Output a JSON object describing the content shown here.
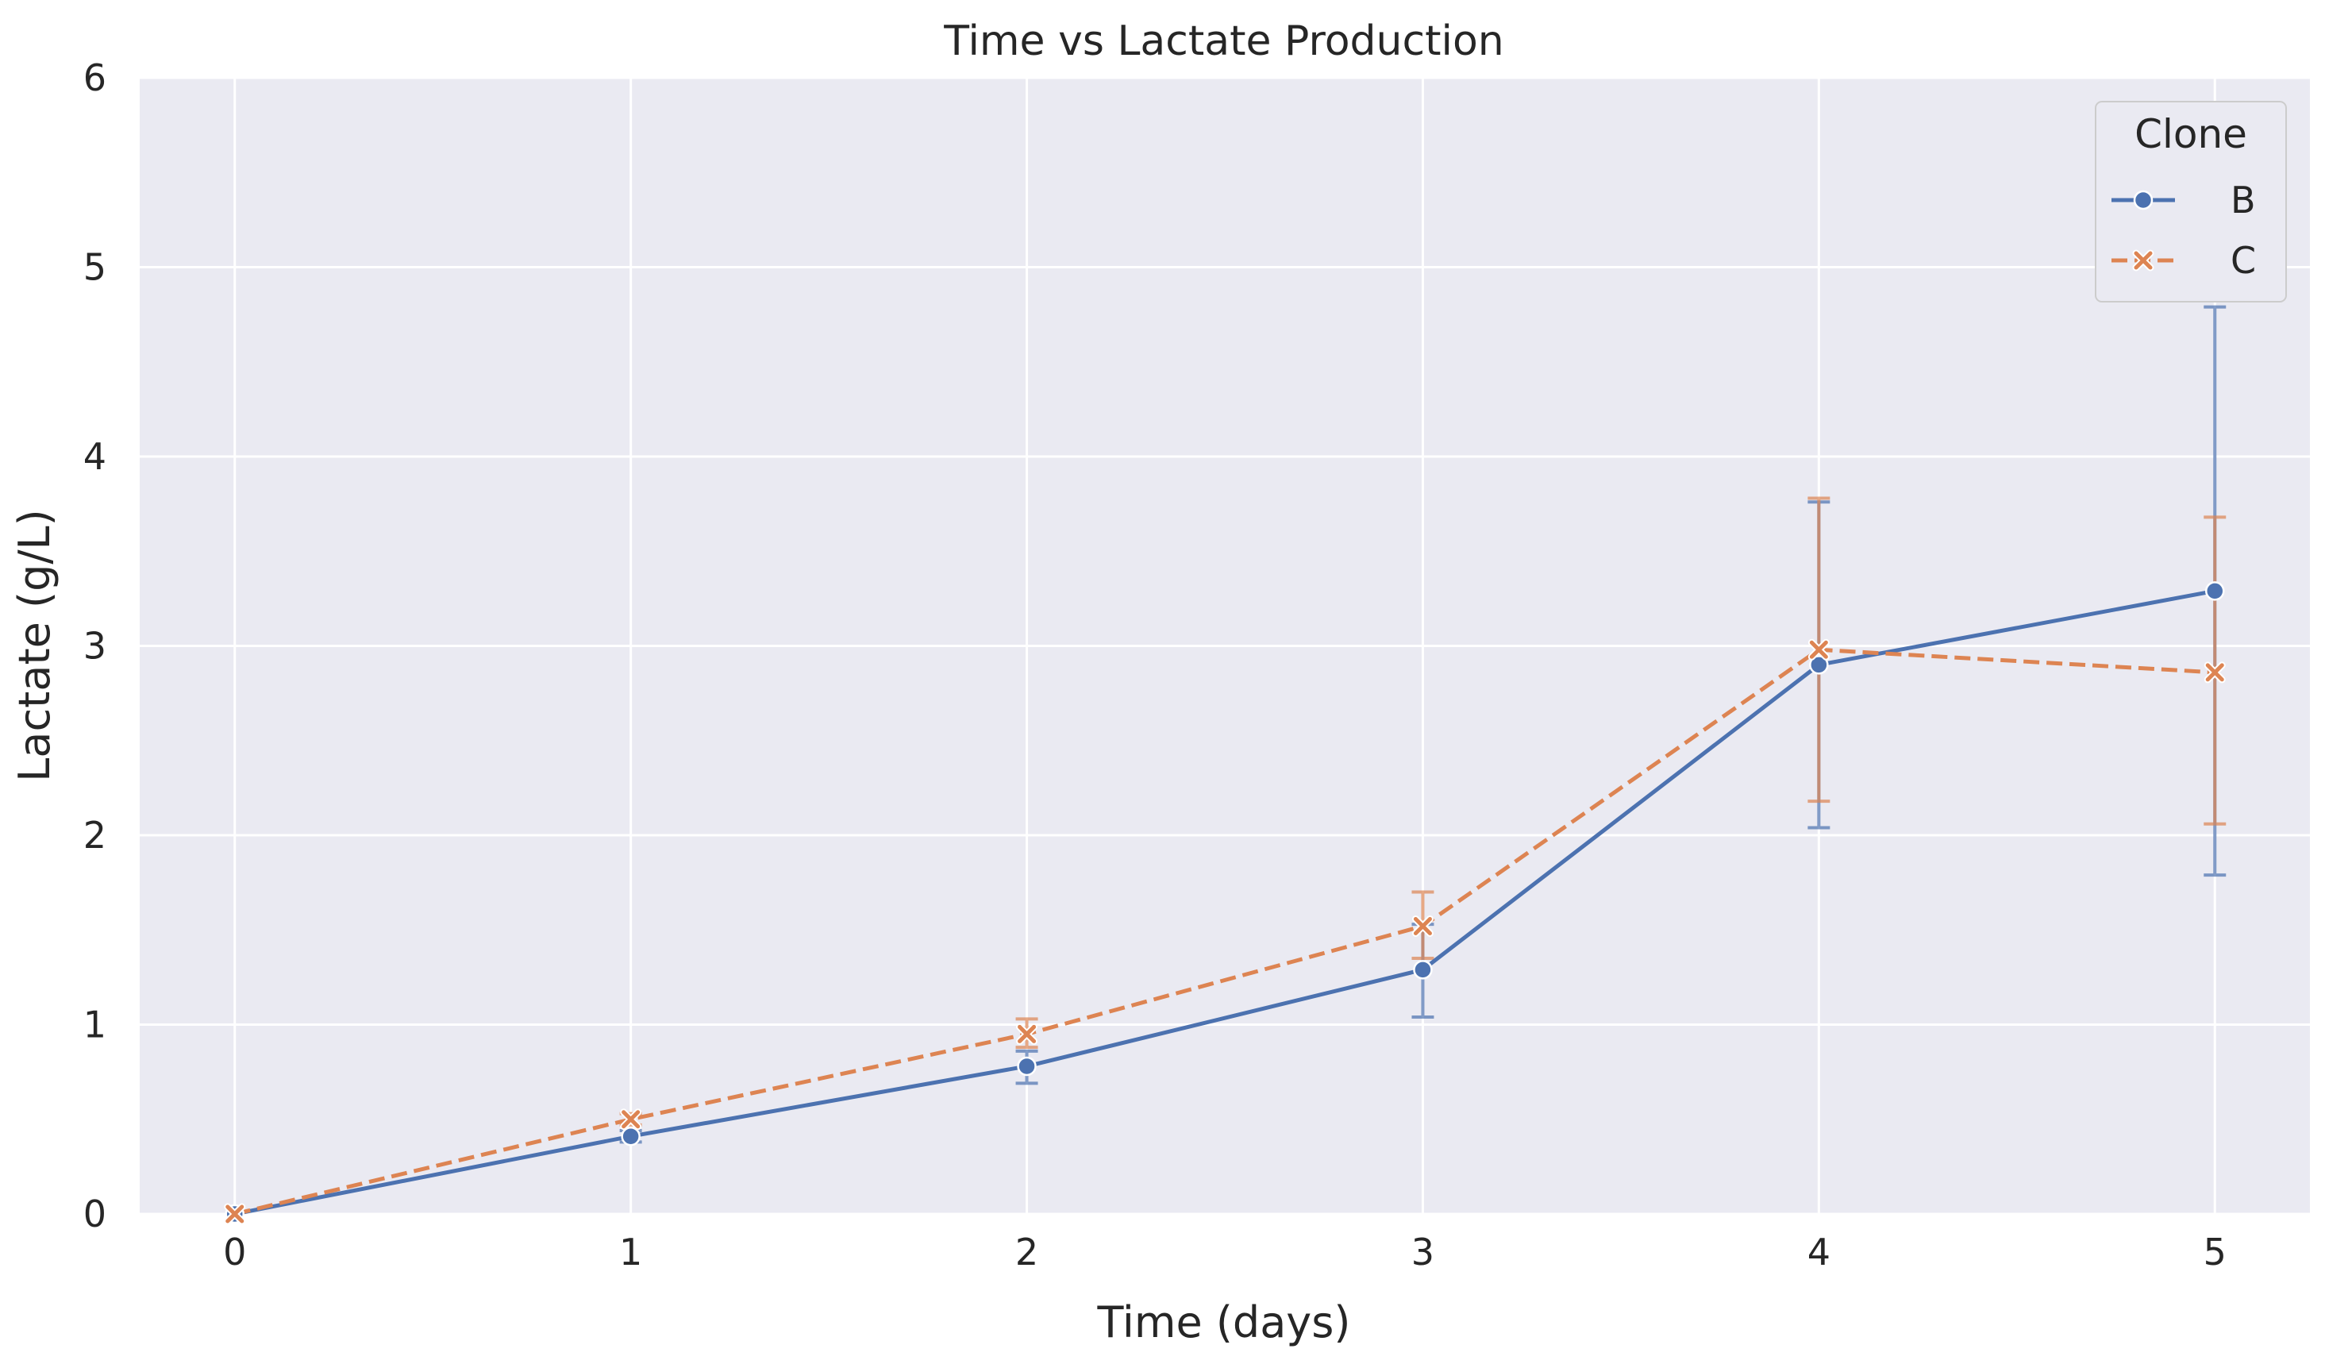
{
  "chart_data": {
    "type": "line",
    "title": "Time vs Lactate Production",
    "xlabel": "Time (days)",
    "ylabel": "Lactate (g/L)",
    "x": [
      0,
      1,
      2,
      3,
      4,
      5
    ],
    "xlim": [
      -0.24,
      5.24
    ],
    "ylim": [
      0,
      6
    ],
    "xticks": [
      "0",
      "1",
      "2",
      "3",
      "4",
      "5"
    ],
    "yticks": [
      "0",
      "1",
      "2",
      "3",
      "4",
      "5",
      "6"
    ],
    "grid": true,
    "legend": {
      "title": "Clone",
      "placement": "top-right"
    },
    "series": [
      {
        "name": "B",
        "color": "#4c72b0",
        "marker": "circle",
        "dash": "solid",
        "values": [
          0.0,
          0.41,
          0.78,
          1.29,
          2.9,
          3.29
        ],
        "err_low": [
          0.0,
          0.38,
          0.69,
          1.04,
          2.04,
          1.79
        ],
        "err_high": [
          0.0,
          0.44,
          0.86,
          1.53,
          3.76,
          4.79
        ]
      },
      {
        "name": "C",
        "color": "#dd8452",
        "marker": "x",
        "dash": "dashed",
        "values": [
          0.0,
          0.5,
          0.95,
          1.52,
          2.98,
          2.86
        ],
        "err_low": [
          0.0,
          0.47,
          0.88,
          1.35,
          2.18,
          2.06
        ],
        "err_high": [
          0.0,
          0.53,
          1.03,
          1.7,
          3.78,
          3.68
        ]
      }
    ]
  }
}
